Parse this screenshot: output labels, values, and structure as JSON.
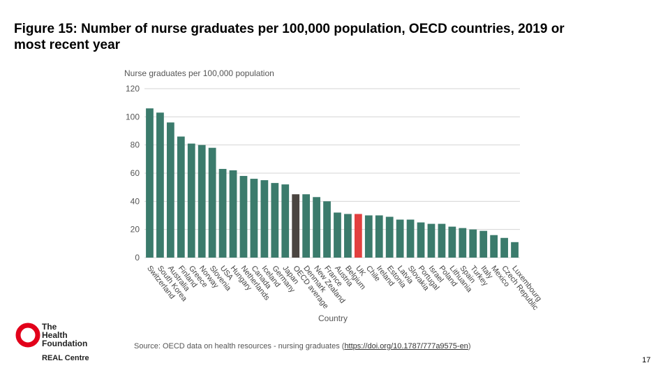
{
  "title": "Figure 15: Number of nurse graduates per 100,000 population, OECD countries, 2019 or most recent year",
  "chart_data": {
    "type": "bar",
    "y_label": "Nurse graduates per 100,000 population",
    "x_label": "Country",
    "categories": [
      "Switzerland",
      "South Korea",
      "Australia",
      "Finland",
      "Greece",
      "Norway",
      "Slovenia",
      "USA",
      "Hungary",
      "Netherlands",
      "Canada",
      "Iceland",
      "Germany",
      "Japan",
      "OECD average",
      "Denmark",
      "New Zealand",
      "France",
      "Austria",
      "Belgium",
      "UK",
      "Chile",
      "Ireland",
      "Estonia",
      "Latvia",
      "Slovakia",
      "Portugal",
      "Israel",
      "Poland",
      "Lithuania",
      "Spain",
      "Turkey",
      "Italy",
      "Mexico",
      "Czech Republic",
      "Luxembourg"
    ],
    "values": [
      106,
      103,
      96,
      86,
      81,
      80,
      78,
      63,
      62,
      58,
      56,
      55,
      53,
      52,
      45,
      45,
      43,
      40,
      32,
      31,
      31,
      30,
      30,
      29,
      27,
      27,
      25,
      24,
      24,
      22,
      21,
      20,
      19,
      16,
      14,
      11
    ],
    "colors": [
      "#3b7b6c",
      "#3b7b6c",
      "#3b7b6c",
      "#3b7b6c",
      "#3b7b6c",
      "#3b7b6c",
      "#3b7b6c",
      "#3b7b6c",
      "#3b7b6c",
      "#3b7b6c",
      "#3b7b6c",
      "#3b7b6c",
      "#3b7b6c",
      "#3b7b6c",
      "#4b4541",
      "#3b7b6c",
      "#3b7b6c",
      "#3b7b6c",
      "#3b7b6c",
      "#3b7b6c",
      "#e2403f",
      "#3b7b6c",
      "#3b7b6c",
      "#3b7b6c",
      "#3b7b6c",
      "#3b7b6c",
      "#3b7b6c",
      "#3b7b6c",
      "#3b7b6c",
      "#3b7b6c",
      "#3b7b6c",
      "#3b7b6c",
      "#3b7b6c",
      "#3b7b6c",
      "#3b7b6c",
      "#3b7b6c"
    ],
    "ylim": [
      0,
      120
    ],
    "yticks": [
      0,
      20,
      40,
      60,
      80,
      100,
      120
    ],
    "grid": true
  },
  "source": {
    "text": "Source: OECD data on health resources - nursing graduates (",
    "link": "https://doi.org/10.1787/777a9575-en",
    "close": ")"
  },
  "logo": {
    "line1": "The",
    "line2": "Health",
    "line3": "Foundation",
    "sub": "REAL Centre"
  },
  "page_number": "17"
}
